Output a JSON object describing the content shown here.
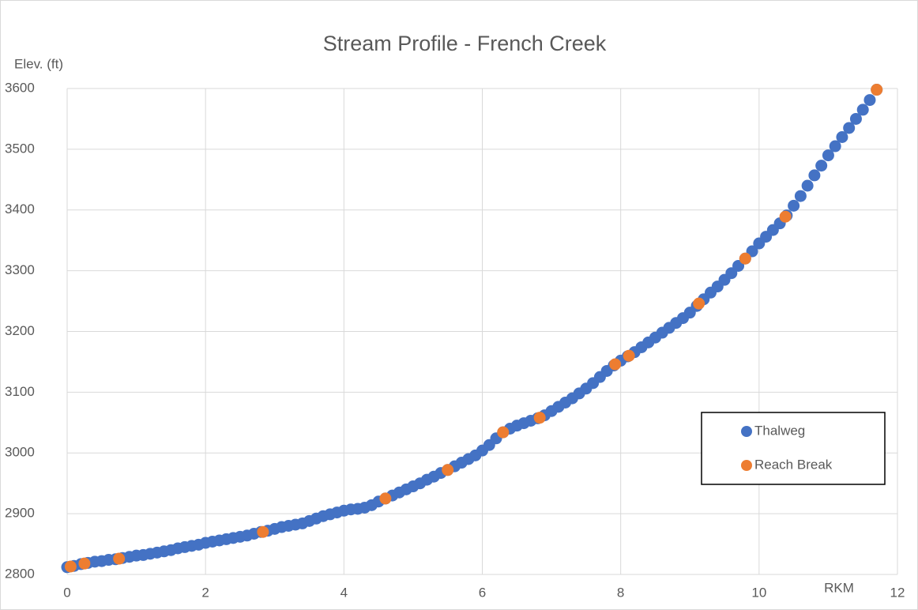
{
  "chart_data": {
    "type": "scatter",
    "title": "Stream Profile - French Creek",
    "y_label": "Elev. (ft)",
    "x_label": "RKM",
    "xlim": [
      0,
      12
    ],
    "xticks": [
      0,
      2,
      4,
      6,
      8,
      10,
      12
    ],
    "ylim": [
      2800,
      3600
    ],
    "yticks": [
      2800,
      2900,
      3000,
      3100,
      3200,
      3300,
      3400,
      3500,
      3600
    ],
    "grid": true,
    "legend_position": "right",
    "series": [
      {
        "name": "Thalweg",
        "color": "#4472c4",
        "x": [
          0.0,
          0.1,
          0.2,
          0.3,
          0.4,
          0.5,
          0.6,
          0.7,
          0.8,
          0.9,
          1.0,
          1.1,
          1.2,
          1.3,
          1.4,
          1.5,
          1.6,
          1.7,
          1.8,
          1.9,
          2.0,
          2.1,
          2.2,
          2.3,
          2.4,
          2.5,
          2.6,
          2.7,
          2.8,
          2.9,
          3.0,
          3.1,
          3.2,
          3.3,
          3.4,
          3.5,
          3.6,
          3.7,
          3.8,
          3.9,
          4.0,
          4.1,
          4.2,
          4.3,
          4.4,
          4.5,
          4.6,
          4.7,
          4.8,
          4.9,
          5.0,
          5.1,
          5.2,
          5.3,
          5.4,
          5.5,
          5.6,
          5.7,
          5.8,
          5.9,
          6.0,
          6.1,
          6.2,
          6.3,
          6.4,
          6.5,
          6.6,
          6.7,
          6.8,
          6.9,
          7.0,
          7.1,
          7.2,
          7.3,
          7.4,
          7.5,
          7.6,
          7.7,
          7.8,
          7.9,
          8.0,
          8.1,
          8.2,
          8.3,
          8.4,
          8.5,
          8.6,
          8.7,
          8.8,
          8.9,
          9.0,
          9.1,
          9.2,
          9.3,
          9.4,
          9.5,
          9.6,
          9.7,
          9.8,
          9.9,
          10.0,
          10.1,
          10.2,
          10.3,
          10.4,
          10.5,
          10.6,
          10.7,
          10.8,
          10.9,
          11.0,
          11.1,
          11.2,
          11.3,
          11.4,
          11.5,
          11.6,
          11.7
        ],
        "values": [
          2812,
          2814,
          2817,
          2819,
          2821,
          2822,
          2824,
          2825,
          2827,
          2829,
          2831,
          2832,
          2834,
          2836,
          2838,
          2840,
          2843,
          2845,
          2847,
          2849,
          2852,
          2854,
          2856,
          2858,
          2860,
          2862,
          2864,
          2867,
          2870,
          2872,
          2875,
          2878,
          2880,
          2882,
          2884,
          2888,
          2892,
          2896,
          2899,
          2902,
          2905,
          2907,
          2908,
          2910,
          2914,
          2920,
          2925,
          2930,
          2935,
          2940,
          2945,
          2950,
          2956,
          2961,
          2967,
          2972,
          2978,
          2984,
          2990,
          2996,
          3004,
          3013,
          3024,
          3034,
          3040,
          3045,
          3049,
          3053,
          3057,
          3062,
          3069,
          3076,
          3083,
          3090,
          3098,
          3106,
          3115,
          3125,
          3135,
          3144,
          3152,
          3159,
          3166,
          3174,
          3182,
          3190,
          3198,
          3206,
          3214,
          3222,
          3231,
          3242,
          3253,
          3264,
          3274,
          3285,
          3296,
          3308,
          3320,
          3332,
          3345,
          3356,
          3367,
          3378,
          3391,
          3407,
          3423,
          3440,
          3457,
          3473,
          3490,
          3505,
          3520,
          3535,
          3550,
          3565,
          3581,
          3598
        ]
      },
      {
        "name": "Reach Break",
        "color": "#ed7d31",
        "x": [
          0.05,
          0.25,
          0.75,
          2.83,
          4.6,
          5.5,
          6.3,
          6.83,
          7.92,
          8.12,
          9.13,
          9.8,
          10.38,
          11.7
        ],
        "values": [
          2813,
          2818,
          2826,
          2870,
          2925,
          2972,
          3034,
          3058,
          3146,
          3160,
          3246,
          3320,
          3389,
          3598
        ]
      }
    ]
  }
}
